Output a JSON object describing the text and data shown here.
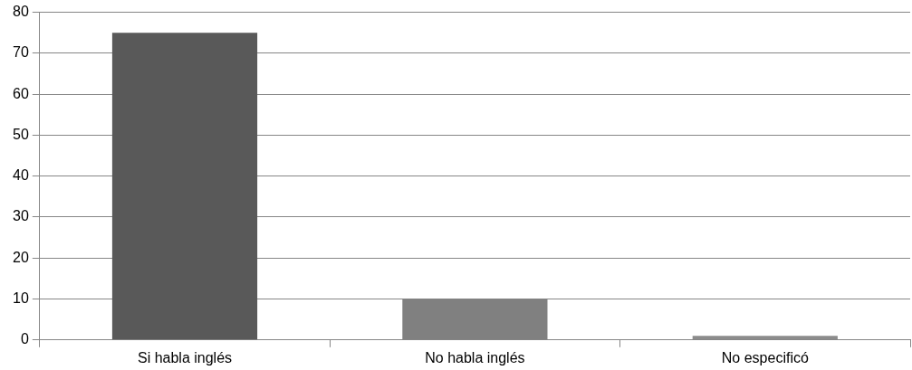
{
  "chart_data": {
    "type": "bar",
    "categories": [
      "Si habla inglés",
      "No habla inglés",
      "No especificó"
    ],
    "values": [
      75,
      10,
      1
    ],
    "colors": [
      "#595959",
      "#808080",
      "#8c8c8c"
    ],
    "ylim": [
      0,
      80
    ],
    "yticks": [
      0,
      10,
      20,
      30,
      40,
      50,
      60,
      70,
      80
    ],
    "grid": "y",
    "legend": false
  }
}
